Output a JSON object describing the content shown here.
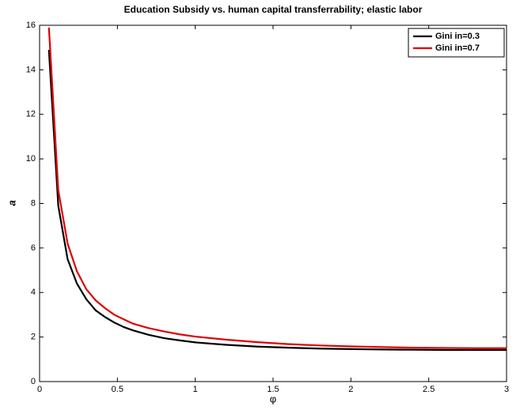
{
  "chart_data": {
    "type": "line",
    "title": "Education Subsidy vs. human capital transferrability; elastic labor",
    "x_label": "φ",
    "y_label": "a",
    "x": [
      0.06,
      0.12,
      0.18,
      0.24,
      0.3,
      0.36,
      0.42,
      0.48,
      0.54,
      0.6,
      0.7,
      0.8,
      0.9,
      1.0,
      1.2,
      1.4,
      1.6,
      1.8,
      2.0,
      2.2,
      2.4,
      2.6,
      2.8,
      3.0
    ],
    "series": [
      {
        "name": "Gini in=0.3",
        "color": "#000000",
        "values": [
          14.9,
          7.9,
          5.5,
          4.4,
          3.7,
          3.2,
          2.9,
          2.65,
          2.45,
          2.3,
          2.1,
          1.95,
          1.85,
          1.76,
          1.65,
          1.57,
          1.52,
          1.48,
          1.46,
          1.44,
          1.43,
          1.42,
          1.42,
          1.42
        ]
      },
      {
        "name": "Gini in=0.7",
        "color": "#e00000",
        "values": [
          15.9,
          8.6,
          6.2,
          4.95,
          4.15,
          3.65,
          3.3,
          3.0,
          2.8,
          2.6,
          2.4,
          2.25,
          2.12,
          2.02,
          1.88,
          1.77,
          1.68,
          1.62,
          1.58,
          1.55,
          1.52,
          1.51,
          1.5,
          1.5
        ]
      }
    ],
    "xlim": [
      0,
      3
    ],
    "ylim": [
      0,
      16
    ],
    "xticks": [
      0,
      0.5,
      1,
      1.5,
      2,
      2.5,
      3
    ],
    "yticks": [
      0,
      2,
      4,
      6,
      8,
      10,
      12,
      14,
      16
    ],
    "legend": "upper right"
  }
}
